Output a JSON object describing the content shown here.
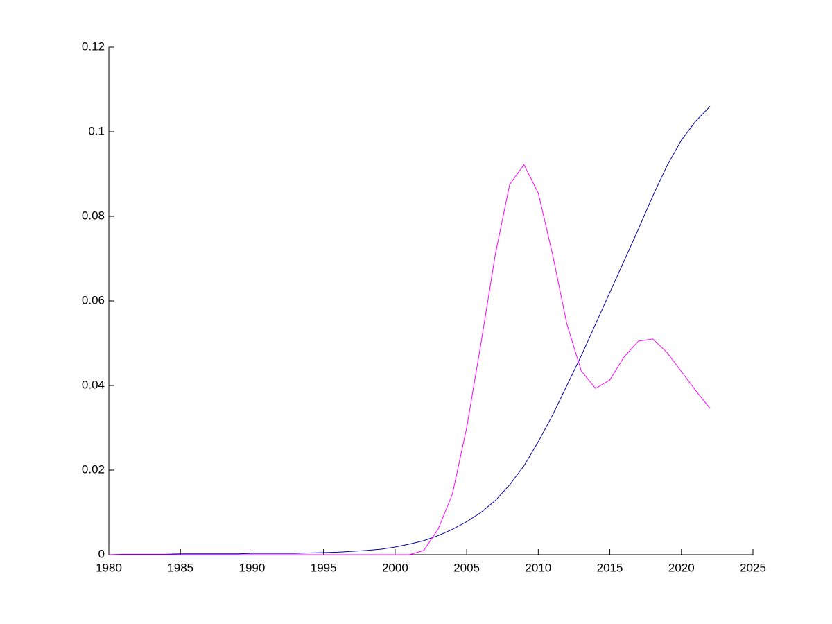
{
  "chart_data": {
    "type": "line",
    "x": [
      1980,
      1981,
      1982,
      1983,
      1984,
      1985,
      1986,
      1987,
      1988,
      1989,
      1990,
      1991,
      1992,
      1993,
      1994,
      1995,
      1996,
      1997,
      1998,
      1999,
      2000,
      2001,
      2002,
      2003,
      2004,
      2005,
      2006,
      2007,
      2008,
      2009,
      2010,
      2011,
      2012,
      2013,
      2014,
      2015,
      2016,
      2017,
      2018,
      2019,
      2020,
      2021,
      2022
    ],
    "series": [
      {
        "color": "#0000a0",
        "values": [
          0,
          0.0001,
          0.0001,
          0.0001,
          0.0001,
          0.0002,
          0.0002,
          0.0002,
          0.0002,
          0.0002,
          0.0003,
          0.0003,
          0.0003,
          0.0003,
          0.0004,
          0.0005,
          0.0006,
          0.0008,
          0.001,
          0.0013,
          0.0018,
          0.0025,
          0.0033,
          0.0045,
          0.006,
          0.0078,
          0.01,
          0.0128,
          0.0165,
          0.021,
          0.0267,
          0.033,
          0.04,
          0.047,
          0.0545,
          0.062,
          0.0695,
          0.077,
          0.0848,
          0.092,
          0.098,
          0.1025,
          0.106
        ]
      },
      {
        "color": "#ff00ff",
        "values": [
          0,
          0,
          0,
          0,
          0,
          0,
          0,
          0,
          0,
          0,
          0,
          0,
          0,
          0,
          0,
          0,
          0,
          0,
          0,
          0,
          0,
          0,
          0.001,
          0.006,
          0.0143,
          0.03,
          0.05,
          0.071,
          0.0875,
          0.0922,
          0.0855,
          0.071,
          0.0545,
          0.0435,
          0.0393,
          0.0413,
          0.0468,
          0.0505,
          0.051,
          0.0478,
          0.0433,
          0.0388,
          0.0346
        ]
      }
    ],
    "xlim": [
      1980,
      2025
    ],
    "xticks": [
      1980,
      1985,
      1990,
      1995,
      2000,
      2005,
      2010,
      2015,
      2020,
      2025
    ],
    "ylim": [
      0,
      0.12
    ],
    "yticks": [
      0,
      0.02,
      0.04,
      0.06,
      0.08,
      0.1,
      0.12
    ],
    "grid": false
  }
}
